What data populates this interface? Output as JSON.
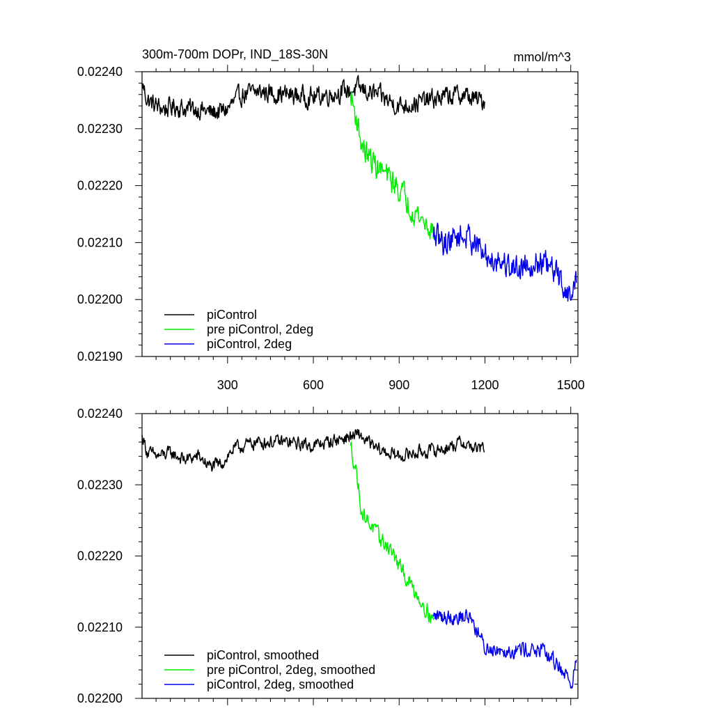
{
  "title_left": "300m-700m DOPr, IND_18S-30N",
  "title_right": "mmol/m^3",
  "colors": {
    "pi": "#000000",
    "pre": "#00ee00",
    "two": "#0000ee"
  },
  "chart_data": [
    {
      "type": "line",
      "title": "300m-700m DOPr, IND_18S-30N",
      "units": "mmol/m^3",
      "xlim": [
        1,
        1525
      ],
      "ylim": [
        0.0219,
        0.0224
      ],
      "x_ticks": [
        300,
        600,
        900,
        1200,
        1500
      ],
      "x_tick_labels": [
        "300",
        "600",
        "900",
        "1200",
        "1500"
      ],
      "y_ticks": [
        0.0219,
        0.022,
        0.0221,
        0.0222,
        0.0223,
        0.0224
      ],
      "y_tick_labels": [
        "0.02190",
        "0.02200",
        "0.02210",
        "0.02220",
        "0.02230",
        "0.02240"
      ],
      "legend_position": "bottom-left",
      "series": [
        {
          "name": "piControl",
          "color": "#000000",
          "x_start": 1,
          "x_end": 1200,
          "anchors": [
            [
              1,
              0.02238
            ],
            [
              20,
              0.02235
            ],
            [
              50,
              0.02234
            ],
            [
              80,
              0.022335
            ],
            [
              120,
              0.02234
            ],
            [
              150,
              0.022335
            ],
            [
              200,
              0.022335
            ],
            [
              240,
              0.022328
            ],
            [
              280,
              0.02233
            ],
            [
              300,
              0.022335
            ],
            [
              350,
              0.02236
            ],
            [
              420,
              0.022365
            ],
            [
              500,
              0.02236
            ],
            [
              600,
              0.022355
            ],
            [
              700,
              0.022365
            ],
            [
              760,
              0.02237
            ],
            [
              820,
              0.02236
            ],
            [
              900,
              0.02234
            ],
            [
              960,
              0.022345
            ],
            [
              1050,
              0.022355
            ],
            [
              1120,
              0.02236
            ],
            [
              1170,
              0.02235
            ],
            [
              1200,
              0.02235
            ]
          ],
          "noise": 1.7e-05
        },
        {
          "name": "pre piControl, 2deg",
          "color": "#00ee00",
          "x_start": 730,
          "x_end": 1020,
          "anchors": [
            [
              730,
              0.02236
            ],
            [
              750,
              0.02232
            ],
            [
              770,
              0.02227
            ],
            [
              800,
              0.022245
            ],
            [
              830,
              0.02223
            ],
            [
              870,
              0.02221
            ],
            [
              900,
              0.022195
            ],
            [
              940,
              0.022165
            ],
            [
              980,
              0.02214
            ],
            [
              1020,
              0.02212
            ]
          ],
          "noise": 2.2e-05
        },
        {
          "name": "piControl, 2deg",
          "color": "#0000ee",
          "x_start": 1020,
          "x_end": 1520,
          "anchors": [
            [
              1020,
              0.02211
            ],
            [
              1060,
              0.0221
            ],
            [
              1100,
              0.022112
            ],
            [
              1150,
              0.02211
            ],
            [
              1200,
              0.022075
            ],
            [
              1250,
              0.02207
            ],
            [
              1300,
              0.022055
            ],
            [
              1350,
              0.022065
            ],
            [
              1400,
              0.022065
            ],
            [
              1450,
              0.022045
            ],
            [
              1480,
              0.02202
            ],
            [
              1500,
              0.022
            ],
            [
              1520,
              0.02204
            ]
          ],
          "noise": 2.3e-05
        }
      ],
      "legend": [
        "piControl",
        "pre piControl, 2deg",
        "piControl, 2deg"
      ]
    },
    {
      "type": "line",
      "title": "",
      "xlim": [
        1,
        1525
      ],
      "ylim": [
        0.022,
        0.0224
      ],
      "x_ticks": [
        300,
        600,
        900,
        1200,
        1500
      ],
      "x_tick_labels": [],
      "y_ticks": [
        0.022,
        0.0221,
        0.0222,
        0.0223,
        0.0224
      ],
      "y_tick_labels": [
        "0.02200",
        "0.02210",
        "0.02220",
        "0.02230",
        "0.02240"
      ],
      "legend_position": "bottom-left",
      "series": [
        {
          "name": "piControl, smoothed",
          "color": "#000000",
          "x_start": 1,
          "x_end": 1200,
          "anchors": [
            [
              1,
              0.02237
            ],
            [
              20,
              0.022345
            ],
            [
              60,
              0.02234
            ],
            [
              100,
              0.022345
            ],
            [
              150,
              0.022335
            ],
            [
              200,
              0.02234
            ],
            [
              240,
              0.022325
            ],
            [
              280,
              0.02233
            ],
            [
              320,
              0.02235
            ],
            [
              400,
              0.02236
            ],
            [
              500,
              0.02236
            ],
            [
              600,
              0.022355
            ],
            [
              700,
              0.022365
            ],
            [
              760,
              0.02237
            ],
            [
              820,
              0.02235
            ],
            [
              900,
              0.02234
            ],
            [
              960,
              0.022345
            ],
            [
              1050,
              0.02235
            ],
            [
              1120,
              0.02236
            ],
            [
              1170,
              0.02235
            ],
            [
              1200,
              0.022352
            ]
          ],
          "noise": 9e-06
        },
        {
          "name": "pre piControl, 2deg, smoothed",
          "color": "#00ee00",
          "x_start": 730,
          "x_end": 1020,
          "anchors": [
            [
              730,
              0.022355
            ],
            [
              750,
              0.02232
            ],
            [
              770,
              0.02226
            ],
            [
              800,
              0.022245
            ],
            [
              830,
              0.022225
            ],
            [
              870,
              0.02221
            ],
            [
              900,
              0.022185
            ],
            [
              940,
              0.02216
            ],
            [
              980,
              0.022135
            ],
            [
              1020,
              0.02211
            ]
          ],
          "noise": 1.1e-05
        },
        {
          "name": "piControl, 2deg, smoothed",
          "color": "#0000ee",
          "x_start": 1020,
          "x_end": 1520,
          "anchors": [
            [
              1020,
              0.022115
            ],
            [
              1060,
              0.022115
            ],
            [
              1100,
              0.022115
            ],
            [
              1150,
              0.022115
            ],
            [
              1200,
              0.02207
            ],
            [
              1250,
              0.02207
            ],
            [
              1300,
              0.022068
            ],
            [
              1350,
              0.02207
            ],
            [
              1400,
              0.022065
            ],
            [
              1450,
              0.02205
            ],
            [
              1480,
              0.022035
            ],
            [
              1500,
              0.02202
            ],
            [
              1520,
              0.02205
            ]
          ],
          "noise": 1.1e-05
        }
      ],
      "legend": [
        "piControl, smoothed",
        "pre piControl, 2deg, smoothed",
        "piControl, 2deg, smoothed"
      ]
    }
  ]
}
